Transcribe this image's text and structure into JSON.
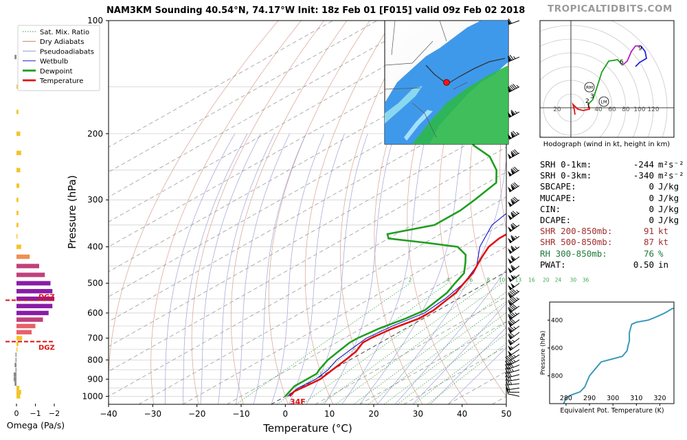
{
  "title": "NAM3KM Sounding 40.54°N, 74.17°W Init: 18z Feb 01 [F015] valid 09z Feb 02 2018",
  "watermark": "TROPICALTIDBITS.COM",
  "legend": [
    {
      "label": "Sat. Mix. Ratio",
      "color": "#2ca02c",
      "style": "dotted"
    },
    {
      "label": "Dry Adiabats",
      "color": "#c8805a",
      "style": "solid"
    },
    {
      "label": "Pseudoadiabats",
      "color": "#9a9acf",
      "style": "solid"
    },
    {
      "label": "Wetbulb",
      "color": "#2222cc",
      "style": "solid"
    },
    {
      "label": "Dewpoint",
      "color": "#1e9e1e",
      "style": "thick"
    },
    {
      "label": "Temperature",
      "color": "#e01010",
      "style": "thick"
    }
  ],
  "colors": {
    "temperature": "#e01010",
    "dewpoint": "#1e9e1e",
    "wetbulb": "#2222cc",
    "dgz": "#e01010",
    "theta_e": "#3a9ab8"
  },
  "surface_label": "34F",
  "stats": [
    {
      "key": "SRH 0-1km:",
      "value": "-244",
      "unit": "m²s⁻²",
      "color": "#000000"
    },
    {
      "key": "SRH 0-3km:",
      "value": "-340",
      "unit": "m²s⁻²",
      "color": "#000000"
    },
    {
      "key": "SBCAPE:",
      "value": "0",
      "unit": "J/kg",
      "color": "#000000"
    },
    {
      "key": "MUCAPE:",
      "value": "0",
      "unit": "J/kg",
      "color": "#000000"
    },
    {
      "key": "CIN:",
      "value": "0",
      "unit": "J/kg",
      "color": "#000000"
    },
    {
      "key": "DCAPE:",
      "value": "0",
      "unit": "J/kg",
      "color": "#000000"
    },
    {
      "key": "SHR 200-850mb:",
      "value": "91",
      "unit": "kt",
      "color": "#a03030"
    },
    {
      "key": "SHR 500-850mb:",
      "value": "87",
      "unit": "kt",
      "color": "#a03030"
    },
    {
      "key": "RH 300-850mb:",
      "value": "76",
      "unit": "%",
      "color": "#1e7a3a"
    },
    {
      "key": "PWAT:",
      "value": "0.50",
      "unit": "in",
      "color": "#000000"
    }
  ],
  "chart_data": [
    {
      "type": "line",
      "name": "skew-t",
      "xlabel": "Temperature (°C)",
      "ylabel": "Pressure (hPa)",
      "xlim": [
        -40,
        50
      ],
      "ylim": [
        1050,
        100
      ],
      "yscale": "log",
      "xticks": [
        -40,
        -30,
        -20,
        -10,
        0,
        10,
        20,
        30,
        40,
        50
      ],
      "yticks": [
        100,
        200,
        300,
        400,
        500,
        600,
        700,
        800,
        900,
        1000
      ],
      "mixing_ratio_labels": [
        "2",
        "4",
        "6",
        "8",
        "10",
        "13",
        "16",
        "20",
        "24",
        "30",
        "36"
      ],
      "temperature": [
        [
          1000,
          1
        ],
        [
          970,
          0
        ],
        [
          940,
          0.5
        ],
        [
          900,
          1
        ],
        [
          850,
          0
        ],
        [
          800,
          -1
        ],
        [
          760,
          -2
        ],
        [
          720,
          -4
        ],
        [
          700,
          -4
        ],
        [
          660,
          -3
        ],
        [
          620,
          -1
        ],
        [
          590,
          -1
        ],
        [
          560,
          -2
        ],
        [
          530,
          -3
        ],
        [
          500,
          -5
        ],
        [
          470,
          -7
        ],
        [
          440,
          -10
        ],
        [
          420,
          -12
        ],
        [
          400,
          -14
        ],
        [
          380,
          -15
        ],
        [
          360,
          -15
        ],
        [
          340,
          -16
        ],
        [
          320,
          -18
        ],
        [
          300,
          -21
        ],
        [
          280,
          -24
        ],
        [
          260,
          -27
        ],
        [
          250,
          -29
        ],
        [
          240,
          -32
        ],
        [
          220,
          -37
        ],
        [
          200,
          -43
        ],
        [
          180,
          -49
        ],
        [
          170,
          -52
        ],
        [
          160,
          -54
        ],
        [
          150,
          -54
        ],
        [
          140,
          -54
        ],
        [
          130,
          -55
        ],
        [
          120,
          -56
        ],
        [
          110,
          -57
        ],
        [
          100,
          -58
        ]
      ],
      "dewpoint": [
        [
          1000,
          0
        ],
        [
          970,
          -1
        ],
        [
          940,
          -2
        ],
        [
          900,
          -2
        ],
        [
          870,
          -2
        ],
        [
          850,
          -3
        ],
        [
          800,
          -5
        ],
        [
          760,
          -6
        ],
        [
          720,
          -7
        ],
        [
          700,
          -7
        ],
        [
          660,
          -6
        ],
        [
          620,
          -4
        ],
        [
          590,
          -3
        ],
        [
          560,
          -4
        ],
        [
          530,
          -5
        ],
        [
          500,
          -7
        ],
        [
          470,
          -9
        ],
        [
          440,
          -13
        ],
        [
          420,
          -16
        ],
        [
          400,
          -21
        ],
        [
          390,
          -30
        ],
        [
          380,
          -40
        ],
        [
          370,
          -42
        ],
        [
          350,
          -35
        ],
        [
          320,
          -35
        ],
        [
          300,
          -36
        ],
        [
          270,
          -38
        ],
        [
          250,
          -43
        ],
        [
          230,
          -50
        ],
        [
          215,
          -58
        ],
        [
          200,
          -64
        ],
        [
          180,
          -72
        ],
        [
          160,
          -78
        ],
        [
          140,
          -80
        ],
        [
          120,
          -82
        ],
        [
          110,
          -84
        ],
        [
          100,
          -86
        ]
      ],
      "wetbulb": [
        [
          1000,
          0.5
        ],
        [
          950,
          -0.5
        ],
        [
          900,
          0
        ],
        [
          850,
          -1
        ],
        [
          800,
          -3
        ],
        [
          750,
          -4
        ],
        [
          700,
          -5
        ],
        [
          650,
          -4
        ],
        [
          600,
          -2
        ],
        [
          550,
          -3
        ],
        [
          500,
          -5
        ],
        [
          450,
          -9
        ],
        [
          400,
          -16
        ],
        [
          350,
          -22
        ],
        [
          300,
          -25
        ],
        [
          250,
          -31
        ],
        [
          200,
          -45
        ],
        [
          150,
          -56
        ],
        [
          100,
          -60
        ]
      ]
    },
    {
      "type": "bar",
      "name": "omega",
      "xlabel": "Omega (Pa/s)",
      "xticks": [
        "0",
        "−1",
        "−2"
      ],
      "dgz_label": "DGZ",
      "dgz_pressures": [
        555,
        715
      ],
      "levels": [
        [
          1000,
          -0.2
        ],
        [
          975,
          -0.25
        ],
        [
          950,
          -0.15
        ],
        [
          925,
          0.1
        ],
        [
          900,
          0.15
        ],
        [
          875,
          0.15
        ],
        [
          850,
          0.05
        ],
        [
          825,
          0.1
        ],
        [
          800,
          0.05
        ],
        [
          775,
          0.05
        ],
        [
          750,
          -0.05
        ],
        [
          725,
          -0.1
        ],
        [
          700,
          -0.3
        ],
        [
          675,
          -0.8
        ],
        [
          650,
          -1.0
        ],
        [
          625,
          -1.4
        ],
        [
          600,
          -1.7
        ],
        [
          575,
          -1.9
        ],
        [
          550,
          -2.0
        ],
        [
          525,
          -1.9
        ],
        [
          500,
          -1.8
        ],
        [
          475,
          -1.5
        ],
        [
          450,
          -1.2
        ],
        [
          425,
          -0.7
        ],
        [
          400,
          -0.25
        ],
        [
          375,
          -0.05
        ],
        [
          350,
          -0.1
        ],
        [
          325,
          -0.1
        ],
        [
          300,
          -0.1
        ],
        [
          275,
          -0.15
        ],
        [
          250,
          -0.2
        ],
        [
          225,
          -0.25
        ],
        [
          200,
          -0.2
        ],
        [
          175,
          -0.1
        ],
        [
          150,
          -0.05
        ],
        [
          125,
          0.1
        ]
      ]
    },
    {
      "type": "line",
      "name": "hodograph",
      "title": "Hodograph (wind in kt, height in km)",
      "ring_labels": [
        "20",
        "40",
        "60",
        "80",
        "100",
        "120"
      ],
      "markers": [
        "RM",
        "LM"
      ],
      "height_labels": [
        {
          "km": "1",
          "u": 27,
          "v": -2
        },
        {
          "km": "2",
          "u": 25,
          "v": 5
        },
        {
          "km": "3",
          "u": 32,
          "v": 12
        },
        {
          "km": "6",
          "u": 75,
          "v": 62
        },
        {
          "km": "9",
          "u": 102,
          "v": 82
        }
      ],
      "segments": [
        {
          "color": "#e01010",
          "points": [
            [
              6,
              -10
            ],
            [
              5,
              -3
            ],
            [
              3,
              5
            ],
            [
              10,
              -2
            ],
            [
              18,
              -4
            ],
            [
              22,
              -3
            ],
            [
              27,
              -2
            ],
            [
              26,
              2
            ],
            [
              25,
              5
            ]
          ]
        },
        {
          "color": "#1e9e1e",
          "points": [
            [
              25,
              5
            ],
            [
              28,
              8
            ],
            [
              32,
              12
            ],
            [
              38,
              30
            ],
            [
              45,
              52
            ],
            [
              55,
              68
            ],
            [
              68,
              70
            ],
            [
              75,
              62
            ]
          ]
        },
        {
          "color": "#b020c0",
          "points": [
            [
              75,
              62
            ],
            [
              82,
              68
            ],
            [
              88,
              82
            ],
            [
              94,
              90
            ],
            [
              102,
              90
            ]
          ]
        },
        {
          "color": "#2222dd",
          "points": [
            [
              102,
              90
            ],
            [
              108,
              82
            ],
            [
              110,
              72
            ],
            [
              100,
              66
            ],
            [
              94,
              60
            ]
          ]
        }
      ]
    },
    {
      "type": "line",
      "name": "theta-e",
      "xlabel": "Equivalent Pot. Temperature (K)",
      "ylabel": "Pressure (hPa)",
      "xlim": [
        273,
        326
      ],
      "ylim": [
        1000,
        270
      ],
      "xticks": [
        280,
        290,
        300,
        310,
        320
      ],
      "yticks": [
        400,
        600,
        800
      ],
      "points": [
        [
          1000,
          279
        ],
        [
          960,
          280
        ],
        [
          940,
          282
        ],
        [
          915,
          286
        ],
        [
          880,
          288
        ],
        [
          840,
          289
        ],
        [
          800,
          290
        ],
        [
          760,
          292
        ],
        [
          720,
          294
        ],
        [
          700,
          295
        ],
        [
          660,
          304
        ],
        [
          620,
          306
        ],
        [
          580,
          306.5
        ],
        [
          550,
          307
        ],
        [
          520,
          307
        ],
        [
          490,
          307
        ],
        [
          460,
          307.5
        ],
        [
          430,
          308
        ],
        [
          415,
          310
        ],
        [
          400,
          315
        ],
        [
          380,
          318
        ],
        [
          350,
          322
        ],
        [
          320,
          325
        ],
        [
          300,
          328
        ]
      ]
    }
  ],
  "wind_barbs": [
    [
      1000,
      9,
      -2,
      "#000000"
    ],
    [
      975,
      14,
      0,
      "#000000"
    ],
    [
      950,
      20,
      3,
      "#000000"
    ],
    [
      925,
      25,
      3,
      "#000000"
    ],
    [
      900,
      28,
      5,
      "#000000"
    ],
    [
      875,
      30,
      8,
      "#000000"
    ],
    [
      850,
      33,
      10,
      "#000000"
    ],
    [
      825,
      36,
      14,
      "#000000"
    ],
    [
      800,
      38,
      20,
      "#000000"
    ],
    [
      775,
      40,
      25,
      "#000000"
    ],
    [
      750,
      42,
      28,
      "#000000"
    ],
    [
      725,
      45,
      32,
      "#000000"
    ],
    [
      700,
      50,
      38,
      "#000000"
    ],
    [
      675,
      55,
      42,
      "#000000"
    ],
    [
      650,
      60,
      45,
      "#000000"
    ],
    [
      625,
      65,
      48,
      "#000000"
    ],
    [
      600,
      70,
      50,
      "#000000"
    ],
    [
      575,
      72,
      52,
      "#000000"
    ],
    [
      550,
      75,
      55,
      "#000000"
    ],
    [
      525,
      78,
      58,
      "#000000"
    ],
    [
      500,
      82,
      60,
      "#000000"
    ],
    [
      475,
      85,
      62,
      "#000000"
    ],
    [
      450,
      88,
      63,
      "#000000"
    ],
    [
      425,
      90,
      64,
      "#000000"
    ],
    [
      400,
      92,
      66,
      "#000000"
    ],
    [
      375,
      95,
      68,
      "#000000"
    ],
    [
      350,
      98,
      70,
      "#000000"
    ],
    [
      325,
      100,
      72,
      "#000000"
    ],
    [
      300,
      104,
      74,
      "#000000"
    ],
    [
      275,
      108,
      70,
      "#000000"
    ],
    [
      250,
      110,
      68,
      "#000000"
    ],
    [
      225,
      112,
      64,
      "#000000"
    ],
    [
      200,
      108,
      60,
      "#000000"
    ],
    [
      175,
      100,
      55,
      "#000000"
    ],
    [
      150,
      85,
      45,
      "#000000"
    ],
    [
      125,
      70,
      30,
      "#000000"
    ],
    [
      100,
      55,
      20,
      "#000000"
    ]
  ]
}
